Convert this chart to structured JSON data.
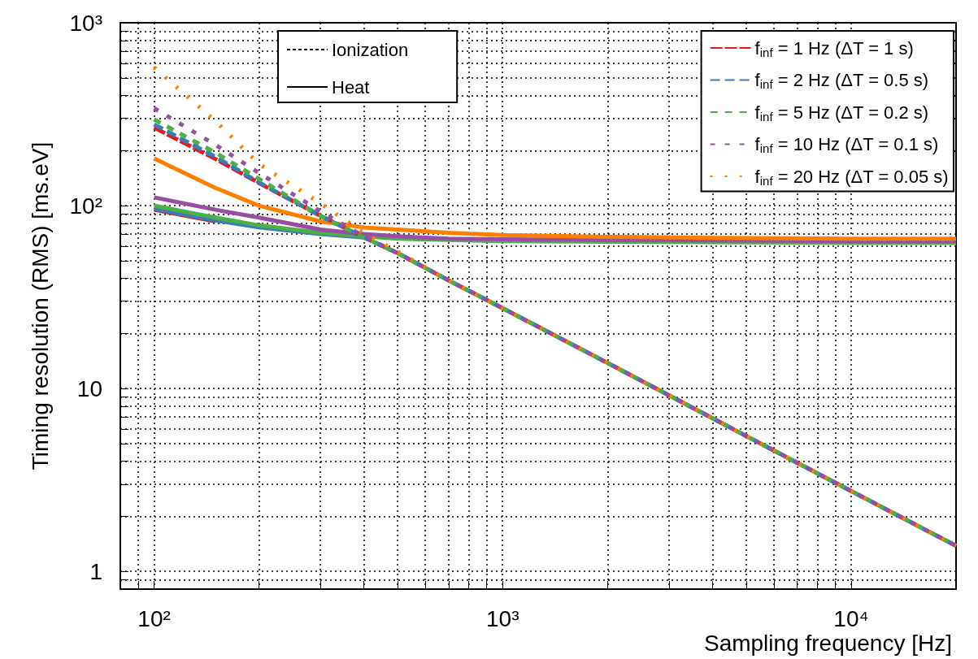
{
  "chart_data": {
    "type": "line",
    "xlabel": "Sampling frequency [Hz]",
    "ylabel": "Timing resolution (RMS) [ms.eV]",
    "log": "xy",
    "grid": true,
    "legend": "top right",
    "marker": "none",
    "xlim": [
      80,
      20000
    ],
    "ylim": [
      0.8,
      1000
    ],
    "xticks": [
      {
        "value": 80,
        "label": null
      },
      {
        "value": 90,
        "label": null
      },
      {
        "value": 100,
        "label": "10²"
      },
      {
        "value": 200,
        "label": null
      },
      {
        "value": 300,
        "label": null
      },
      {
        "value": 400,
        "label": null
      },
      {
        "value": 500,
        "label": null
      },
      {
        "value": 600,
        "label": null
      },
      {
        "value": 700,
        "label": null
      },
      {
        "value": 800,
        "label": null
      },
      {
        "value": 900,
        "label": null
      },
      {
        "value": 1000,
        "label": "10³"
      },
      {
        "value": 2000,
        "label": null
      },
      {
        "value": 3000,
        "label": null
      },
      {
        "value": 4000,
        "label": null
      },
      {
        "value": 5000,
        "label": null
      },
      {
        "value": 6000,
        "label": null
      },
      {
        "value": 7000,
        "label": null
      },
      {
        "value": 8000,
        "label": null
      },
      {
        "value": 9000,
        "label": null
      },
      {
        "value": 10000,
        "label": "10⁴"
      },
      {
        "value": 20000,
        "label": null
      }
    ],
    "yticks": [
      {
        "value": 0.9,
        "label": null
      },
      1,
      {
        "value": 2,
        "label": null
      },
      {
        "value": 3,
        "label": null
      },
      {
        "value": 4,
        "label": null
      },
      {
        "value": 5,
        "label": null
      },
      {
        "value": 6,
        "label": null
      },
      {
        "value": 7,
        "label": null
      },
      {
        "value": 8,
        "label": null
      },
      {
        "value": 9,
        "label": null
      },
      10,
      {
        "value": 20,
        "label": null
      },
      {
        "value": 30,
        "label": null
      },
      {
        "value": 40,
        "label": null
      },
      {
        "value": 50,
        "label": null
      },
      {
        "value": 60,
        "label": null
      },
      {
        "value": 70,
        "label": null
      },
      {
        "value": 80,
        "label": null
      },
      {
        "value": 90,
        "label": null
      },
      {
        "value": 100,
        "label": "10²"
      },
      {
        "value": 200,
        "label": null
      },
      {
        "value": 300,
        "label": null
      },
      {
        "value": 400,
        "label": null
      },
      {
        "value": 500,
        "label": null
      },
      {
        "value": 600,
        "label": null
      },
      {
        "value": 700,
        "label": null
      },
      {
        "value": 800,
        "label": null
      },
      {
        "value": 900,
        "label": null
      },
      {
        "value": 1000,
        "label": "10³"
      }
    ],
    "x": [
      100,
      150,
      200,
      300,
      400,
      500,
      700,
      1000,
      2000,
      5000,
      10000,
      20000
    ],
    "series": [
      {
        "name": "Ionization",
        "color": "#000000",
        "line_style": "dashed",
        "values": [
          null,
          null,
          null,
          null,
          null,
          null,
          null,
          null,
          null,
          null,
          null,
          null
        ]
      },
      {
        "name": "Heat",
        "color": "#000000",
        "line_style": "solid",
        "values": [
          null,
          null,
          null,
          null,
          null,
          null,
          null,
          null,
          null,
          null,
          null,
          null
        ]
      },
      {
        "name": "f$_{inf}$ = 1 Hz (ΔT = 1 s)",
        "color": "#e41a1c",
        "line_style": "dashed",
        "values": [
          267,
          180,
          133,
          88,
          67,
          55,
          39,
          27.5,
          13.8,
          5.5,
          2.75,
          1.38
        ]
      },
      {
        "name": "f$_{inf}$ = 2 Hz (ΔT = 0.5 s)",
        "color": "#377eb8",
        "line_style": "dashed",
        "values": [
          278,
          185,
          134,
          88,
          67,
          55,
          39,
          27.5,
          13.8,
          5.5,
          2.75,
          1.38
        ]
      },
      {
        "name": "f$_{inf}$ = 5 Hz (ΔT = 0.2 s)",
        "color": "#4daf4a",
        "line_style": "dashed",
        "values": [
          296,
          195,
          140,
          88,
          67,
          55,
          39,
          27.5,
          13.8,
          5.5,
          2.75,
          1.38
        ]
      },
      {
        "name": "f$_{inf}$ = 10 Hz (ΔT = 0.1 s)",
        "color": "#984ea3",
        "line_style": "dashed",
        "values": [
          341,
          215,
          151,
          93,
          68,
          55,
          39,
          27.5,
          13.8,
          5.5,
          2.75,
          1.38
        ]
      },
      {
        "name": "f$_{inf}$ = 20 Hz (ΔT = 0.05 s)",
        "color": "#ff7f00",
        "line_style": "dashed",
        "values": [
          570,
          290,
          169,
          103,
          71,
          56,
          39,
          27.5,
          13.8,
          5.5,
          2.75,
          1.38
        ]
      },
      {
        "color": "#e41a1c",
        "line_style": "solid",
        "values": [
          95,
          82,
          null,
          null,
          null,
          null,
          null,
          null,
          null,
          null,
          null,
          null
        ]
      },
      {
        "color": "#377eb8",
        "line_style": "solid",
        "values": [
          96,
          83,
          76,
          70,
          67,
          null,
          null,
          null,
          null,
          null,
          null,
          null
        ]
      },
      {
        "color": "#4daf4a",
        "line_style": "solid",
        "values": [
          100,
          86,
          78,
          71,
          68,
          66,
          65,
          64,
          63.5,
          63,
          62.5,
          62.5
        ]
      },
      {
        "color": "#984ea3",
        "line_style": "solid",
        "values": [
          111,
          95,
          86,
          74,
          70,
          68,
          66,
          65.5,
          65,
          64.5,
          64,
          64
        ]
      },
      {
        "color": "#ff7f00",
        "line_style": "solid",
        "values": [
          181,
          125,
          100,
          82,
          76,
          74,
          71,
          69,
          67.5,
          66.5,
          66,
          66
        ]
      }
    ]
  }
}
